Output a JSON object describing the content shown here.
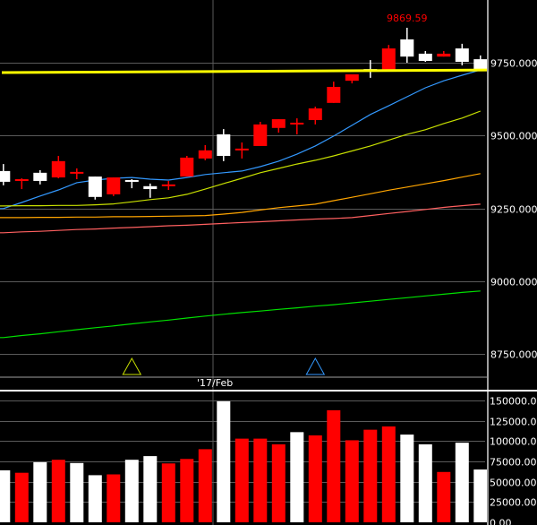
{
  "chart_data": {
    "type": "candlestick",
    "colors": {
      "up": "#ff0000",
      "down": "#ffffff",
      "grid": "#5a5a5a",
      "level_line": "#ffff00"
    },
    "price_axis": {
      "ylim": [
        8660,
        9965
      ],
      "ticks": [
        9750,
        9500,
        9250,
        9000,
        8750
      ],
      "tick_labels": [
        "9750.000",
        "9500.000",
        "9250.000",
        "9000.000",
        "8750.000"
      ]
    },
    "volume_axis": {
      "ylim": [
        0,
        150000
      ],
      "ticks": [
        150000,
        125000,
        100000,
        75000,
        50000,
        25000,
        0
      ],
      "tick_labels": [
        "150000.00",
        "125000.00",
        "100000.00",
        "75000.00",
        "50000.00",
        "25000.00",
        "0.00"
      ]
    },
    "date_label": "'17/Feb",
    "date_label_index": 12.2,
    "max_label": "9869.59",
    "max_label_index": 22,
    "level_line": [
      9716,
      9725
    ],
    "markers": [
      {
        "index": 7,
        "color": "#c8e000"
      },
      {
        "index": 17,
        "color": "#3399ff"
      }
    ],
    "candles": [
      {
        "o": 9378,
        "h": 9402,
        "l": 9329,
        "c": 9341
      },
      {
        "o": 9347,
        "h": 9353,
        "l": 9316,
        "c": 9350
      },
      {
        "o": 9372,
        "h": 9381,
        "l": 9332,
        "c": 9344
      },
      {
        "o": 9356,
        "h": 9430,
        "l": 9353,
        "c": 9412
      },
      {
        "o": 9372,
        "h": 9387,
        "l": 9350,
        "c": 9375
      },
      {
        "o": 9359,
        "h": 9359,
        "l": 9280,
        "c": 9289
      },
      {
        "o": 9298,
        "h": 9356,
        "l": 9292,
        "c": 9356
      },
      {
        "o": 9347,
        "h": 9350,
        "l": 9319,
        "c": 9344
      },
      {
        "o": 9326,
        "h": 9335,
        "l": 9286,
        "c": 9316
      },
      {
        "o": 9329,
        "h": 9344,
        "l": 9313,
        "c": 9332
      },
      {
        "o": 9359,
        "h": 9430,
        "l": 9359,
        "c": 9424
      },
      {
        "o": 9421,
        "h": 9467,
        "l": 9415,
        "c": 9449
      },
      {
        "o": 9504,
        "h": 9522,
        "l": 9412,
        "c": 9430
      },
      {
        "o": 9452,
        "h": 9476,
        "l": 9421,
        "c": 9455
      },
      {
        "o": 9464,
        "h": 9547,
        "l": 9464,
        "c": 9538
      },
      {
        "o": 9526,
        "h": 9556,
        "l": 9510,
        "c": 9556
      },
      {
        "o": 9538,
        "h": 9559,
        "l": 9504,
        "c": 9544
      },
      {
        "o": 9553,
        "h": 9599,
        "l": 9538,
        "c": 9593
      },
      {
        "o": 9612,
        "h": 9685,
        "l": 9612,
        "c": 9667
      },
      {
        "o": 9688,
        "h": 9710,
        "l": 9679,
        "c": 9710
      },
      {
        "o": 9728,
        "h": 9759,
        "l": 9698,
        "c": 9722
      },
      {
        "o": 9722,
        "h": 9811,
        "l": 9722,
        "c": 9799
      },
      {
        "o": 9830,
        "h": 9870,
        "l": 9750,
        "c": 9771
      },
      {
        "o": 9781,
        "h": 9790,
        "l": 9753,
        "c": 9756
      },
      {
        "o": 9771,
        "h": 9790,
        "l": 9771,
        "c": 9781
      },
      {
        "o": 9799,
        "h": 9815,
        "l": 9741,
        "c": 9753
      },
      {
        "o": 9762,
        "h": 9775,
        "l": 9722,
        "c": 9728
      }
    ],
    "volume": [
      64000,
      61000,
      74000,
      77000,
      73000,
      58000,
      59000,
      77000,
      81500,
      72500,
      78000,
      90000,
      149000,
      103000,
      103000,
      96000,
      111000,
      107000,
      138000,
      101000,
      114000,
      118000,
      108000,
      96000,
      62000,
      98000,
      65000
    ],
    "volume_colors": [
      "down",
      "up",
      "down",
      "up",
      "down",
      "down",
      "up",
      "down",
      "down",
      "up",
      "up",
      "up",
      "down",
      "up",
      "up",
      "up",
      "down",
      "up",
      "up",
      "up",
      "up",
      "up",
      "down",
      "down",
      "up",
      "down",
      "down"
    ],
    "moving_averages": [
      {
        "name": "ma-blue",
        "color": "#3399ff",
        "values": [
          9249,
          9270,
          9292,
          9313,
          9338,
          9347,
          9353,
          9356,
          9350,
          9347,
          9356,
          9366,
          9372,
          9378,
          9393,
          9412,
          9436,
          9464,
          9498,
          9535,
          9572,
          9602,
          9633,
          9664,
          9688,
          9707,
          9725
        ]
      },
      {
        "name": "ma-yellow",
        "color": "#c8e000",
        "values": [
          9258,
          9259,
          9259,
          9260,
          9260,
          9262,
          9265,
          9272,
          9280,
          9286,
          9298,
          9316,
          9335,
          9353,
          9372,
          9387,
          9402,
          9415,
          9430,
          9447,
          9464,
          9484,
          9504,
          9520,
          9541,
          9560,
          9584
        ]
      },
      {
        "name": "ma-orange",
        "color": "#ffa500",
        "values": [
          9218,
          9218,
          9219,
          9219,
          9220,
          9220,
          9221,
          9221,
          9222,
          9223,
          9224,
          9225,
          9230,
          9236,
          9244,
          9252,
          9258,
          9264,
          9276,
          9288,
          9300,
          9312,
          9323,
          9334,
          9345,
          9357,
          9369
        ]
      },
      {
        "name": "ma-pink",
        "color": "#ff6060",
        "values": [
          9166,
          9169,
          9171,
          9174,
          9177,
          9179,
          9182,
          9184,
          9187,
          9190,
          9192,
          9195,
          9198,
          9201,
          9204,
          9207,
          9210,
          9213,
          9215,
          9218,
          9225,
          9232,
          9239,
          9246,
          9253,
          9259,
          9264
        ]
      },
      {
        "name": "ma-green",
        "color": "#00e000",
        "values": [
          8806,
          8813,
          8819,
          8826,
          8833,
          8840,
          8846,
          8853,
          8860,
          8866,
          8873,
          8880,
          8886,
          8892,
          8897,
          8903,
          8908,
          8914,
          8919,
          8925,
          8931,
          8937,
          8943,
          8949,
          8955,
          8961,
          8966
        ]
      }
    ]
  }
}
